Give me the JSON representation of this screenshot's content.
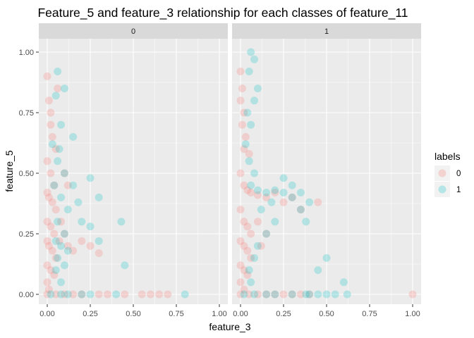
{
  "chart_data": {
    "type": "scatter",
    "title": "Feature_5 and feature_3 relationship for each classes of feature_11",
    "xlabel": "feature_3",
    "ylabel": "feature_5",
    "xlim": [
      0,
      1
    ],
    "ylim": [
      0,
      1
    ],
    "x_ticks": [
      "0.00",
      "0.25",
      "0.50",
      "0.75",
      "1.00"
    ],
    "y_ticks": [
      "0.00",
      "0.25",
      "0.50",
      "0.75",
      "1.00"
    ],
    "grid": true,
    "facets": [
      "0",
      "1"
    ],
    "legend": {
      "title": "labels",
      "placement": "right",
      "entries": [
        "0",
        "1"
      ]
    },
    "colors": {
      "0": "#F8766D",
      "1": "#00BFC4",
      "panel": "#EBEBEB",
      "strip": "#D9D9D9"
    },
    "point_alpha": 0.15,
    "series": [
      {
        "name": "0",
        "facet": "0",
        "points": [
          [
            0.0,
            0.9
          ],
          [
            0.01,
            0.8
          ],
          [
            0.02,
            0.7
          ],
          [
            0.03,
            0.65
          ],
          [
            0.05,
            0.6
          ],
          [
            0.0,
            0.55
          ],
          [
            0.02,
            0.5
          ],
          [
            0.04,
            0.45
          ],
          [
            0.0,
            0.42
          ],
          [
            0.01,
            0.4
          ],
          [
            0.03,
            0.38
          ],
          [
            0.05,
            0.35
          ],
          [
            0.0,
            0.3
          ],
          [
            0.02,
            0.28
          ],
          [
            0.04,
            0.25
          ],
          [
            0.0,
            0.22
          ],
          [
            0.01,
            0.2
          ],
          [
            0.03,
            0.18
          ],
          [
            0.05,
            0.15
          ],
          [
            0.0,
            0.12
          ],
          [
            0.02,
            0.1
          ],
          [
            0.04,
            0.08
          ],
          [
            0.0,
            0.05
          ],
          [
            0.01,
            0.02
          ],
          [
            0.0,
            0.0
          ],
          [
            0.05,
            0.0
          ],
          [
            0.1,
            0.0
          ],
          [
            0.15,
            0.0
          ],
          [
            0.2,
            0.0
          ],
          [
            0.3,
            0.0
          ],
          [
            0.35,
            0.0
          ],
          [
            0.45,
            0.0
          ],
          [
            0.55,
            0.0
          ],
          [
            0.6,
            0.0
          ],
          [
            0.65,
            0.0
          ],
          [
            0.7,
            0.0
          ],
          [
            0.07,
            0.22
          ],
          [
            0.08,
            0.3
          ],
          [
            0.1,
            0.25
          ],
          [
            0.12,
            0.2
          ],
          [
            0.15,
            0.18
          ],
          [
            0.2,
            0.22
          ],
          [
            0.25,
            0.2
          ],
          [
            0.3,
            0.17
          ],
          [
            0.12,
            0.45
          ],
          [
            0.1,
            0.5
          ],
          [
            0.06,
            0.85
          ],
          [
            0.02,
            0.75
          ]
        ]
      },
      {
        "name": "1",
        "facet": "0",
        "points": [
          [
            0.06,
            0.92
          ],
          [
            0.1,
            0.85
          ],
          [
            0.05,
            0.82
          ],
          [
            0.08,
            0.7
          ],
          [
            0.15,
            0.65
          ],
          [
            0.06,
            0.55
          ],
          [
            0.1,
            0.5
          ],
          [
            0.04,
            0.45
          ],
          [
            0.08,
            0.4
          ],
          [
            0.12,
            0.35
          ],
          [
            0.06,
            0.3
          ],
          [
            0.1,
            0.25
          ],
          [
            0.05,
            0.22
          ],
          [
            0.08,
            0.2
          ],
          [
            0.12,
            0.18
          ],
          [
            0.06,
            0.15
          ],
          [
            0.1,
            0.12
          ],
          [
            0.05,
            0.1
          ],
          [
            0.08,
            0.05
          ],
          [
            0.02,
            0.0
          ],
          [
            0.08,
            0.0
          ],
          [
            0.12,
            0.0
          ],
          [
            0.2,
            0.0
          ],
          [
            0.25,
            0.0
          ],
          [
            0.4,
            0.0
          ],
          [
            0.8,
            0.0
          ],
          [
            0.25,
            0.48
          ],
          [
            0.3,
            0.4
          ],
          [
            0.2,
            0.3
          ],
          [
            0.25,
            0.28
          ],
          [
            0.3,
            0.22
          ],
          [
            0.43,
            0.3
          ],
          [
            0.45,
            0.12
          ],
          [
            0.15,
            0.45
          ],
          [
            0.18,
            0.38
          ],
          [
            0.07,
            0.6
          ],
          [
            0.03,
            0.62
          ]
        ]
      },
      {
        "name": "0",
        "facet": "1",
        "points": [
          [
            0.0,
            0.92
          ],
          [
            0.01,
            0.85
          ],
          [
            0.0,
            0.8
          ],
          [
            0.02,
            0.75
          ],
          [
            0.01,
            0.7
          ],
          [
            0.03,
            0.65
          ],
          [
            0.02,
            0.6
          ],
          [
            0.05,
            0.58
          ],
          [
            0.0,
            0.5
          ],
          [
            0.02,
            0.45
          ],
          [
            0.04,
            0.43
          ],
          [
            0.06,
            0.42
          ],
          [
            0.1,
            0.41
          ],
          [
            0.15,
            0.4
          ],
          [
            0.2,
            0.42
          ],
          [
            0.25,
            0.38
          ],
          [
            0.0,
            0.35
          ],
          [
            0.02,
            0.3
          ],
          [
            0.04,
            0.28
          ],
          [
            0.06,
            0.25
          ],
          [
            0.0,
            0.22
          ],
          [
            0.02,
            0.2
          ],
          [
            0.04,
            0.18
          ],
          [
            0.06,
            0.15
          ],
          [
            0.0,
            0.12
          ],
          [
            0.02,
            0.1
          ],
          [
            0.04,
            0.08
          ],
          [
            0.0,
            0.05
          ],
          [
            0.02,
            0.02
          ],
          [
            0.0,
            0.0
          ],
          [
            0.05,
            0.0
          ],
          [
            0.1,
            0.0
          ],
          [
            0.15,
            0.0
          ],
          [
            0.2,
            0.0
          ],
          [
            0.25,
            0.0
          ],
          [
            0.3,
            0.0
          ],
          [
            0.35,
            0.0
          ],
          [
            0.4,
            0.0
          ],
          [
            1.0,
            0.0
          ],
          [
            0.3,
            0.4
          ],
          [
            0.35,
            0.35
          ],
          [
            0.45,
            0.38
          ],
          [
            0.1,
            0.3
          ],
          [
            0.15,
            0.25
          ],
          [
            0.12,
            0.2
          ]
        ]
      },
      {
        "name": "1",
        "facet": "1",
        "points": [
          [
            0.06,
            1.0
          ],
          [
            0.08,
            0.97
          ],
          [
            0.05,
            0.92
          ],
          [
            0.1,
            0.85
          ],
          [
            0.08,
            0.8
          ],
          [
            0.04,
            0.75
          ],
          [
            0.06,
            0.7
          ],
          [
            0.03,
            0.62
          ],
          [
            0.05,
            0.55
          ],
          [
            0.08,
            0.5
          ],
          [
            0.06,
            0.45
          ],
          [
            0.1,
            0.43
          ],
          [
            0.15,
            0.42
          ],
          [
            0.2,
            0.43
          ],
          [
            0.25,
            0.42
          ],
          [
            0.3,
            0.4
          ],
          [
            0.35,
            0.42
          ],
          [
            0.4,
            0.38
          ],
          [
            0.25,
            0.48
          ],
          [
            0.3,
            0.45
          ],
          [
            0.35,
            0.35
          ],
          [
            0.38,
            0.3
          ],
          [
            0.2,
            0.3
          ],
          [
            0.15,
            0.25
          ],
          [
            0.1,
            0.2
          ],
          [
            0.08,
            0.15
          ],
          [
            0.05,
            0.1
          ],
          [
            0.06,
            0.05
          ],
          [
            0.02,
            0.0
          ],
          [
            0.08,
            0.0
          ],
          [
            0.15,
            0.0
          ],
          [
            0.2,
            0.0
          ],
          [
            0.3,
            0.0
          ],
          [
            0.38,
            0.0
          ],
          [
            0.4,
            0.0
          ],
          [
            0.45,
            0.0
          ],
          [
            0.5,
            0.0
          ],
          [
            0.55,
            0.0
          ],
          [
            0.62,
            0.0
          ],
          [
            0.6,
            0.05
          ],
          [
            0.45,
            0.1
          ],
          [
            0.5,
            0.15
          ],
          [
            0.12,
            0.35
          ],
          [
            0.18,
            0.38
          ]
        ]
      }
    ]
  }
}
